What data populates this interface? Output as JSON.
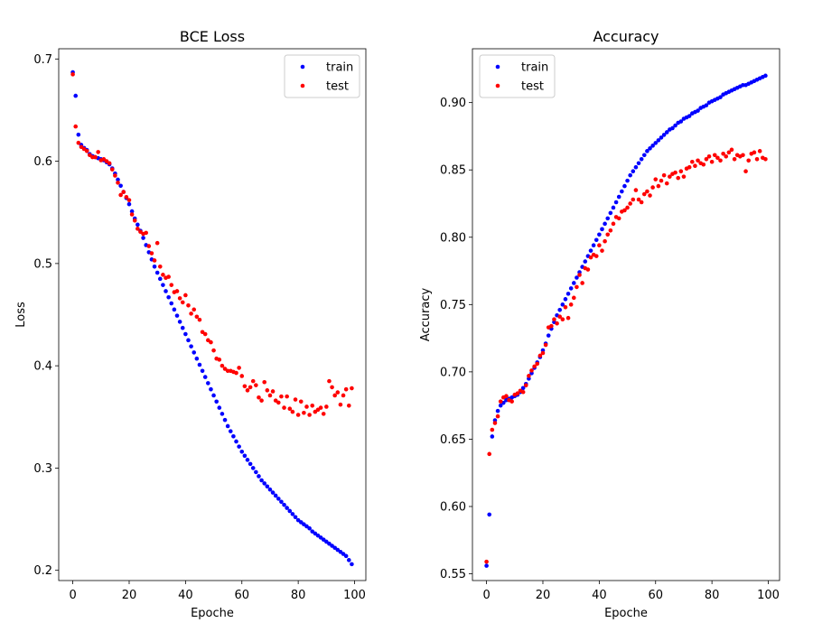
{
  "colors": {
    "train": "#0000ff",
    "test": "#ff0000"
  },
  "chart_data": [
    {
      "type": "scatter",
      "title": "BCE Loss",
      "xlabel": "Epoche",
      "ylabel": "Loss",
      "xlim": [
        -5,
        104
      ],
      "ylim": [
        0.19,
        0.71
      ],
      "xticks": [
        0,
        20,
        40,
        60,
        80,
        100
      ],
      "yticks": [
        0.2,
        0.3,
        0.4,
        0.5,
        0.6,
        0.7
      ],
      "legend_position": "top-right",
      "series": [
        {
          "name": "train",
          "values": [
            0.687,
            0.664,
            0.626,
            0.616,
            0.613,
            0.611,
            0.607,
            0.605,
            0.604,
            0.603,
            0.602,
            0.601,
            0.599,
            0.597,
            0.593,
            0.588,
            0.582,
            0.576,
            0.57,
            0.564,
            0.558,
            0.551,
            0.544,
            0.538,
            0.532,
            0.525,
            0.518,
            0.511,
            0.504,
            0.497,
            0.491,
            0.485,
            0.479,
            0.473,
            0.467,
            0.461,
            0.455,
            0.449,
            0.443,
            0.437,
            0.431,
            0.425,
            0.419,
            0.413,
            0.407,
            0.401,
            0.395,
            0.389,
            0.383,
            0.377,
            0.371,
            0.365,
            0.359,
            0.353,
            0.347,
            0.341,
            0.336,
            0.331,
            0.326,
            0.321,
            0.316,
            0.312,
            0.308,
            0.304,
            0.3,
            0.296,
            0.292,
            0.288,
            0.285,
            0.282,
            0.279,
            0.276,
            0.273,
            0.27,
            0.267,
            0.264,
            0.261,
            0.258,
            0.255,
            0.252,
            0.249,
            0.247,
            0.245,
            0.243,
            0.241,
            0.238,
            0.236,
            0.234,
            0.232,
            0.23,
            0.228,
            0.226,
            0.224,
            0.222,
            0.22,
            0.218,
            0.216,
            0.214,
            0.21,
            0.206
          ]
        },
        {
          "name": "test",
          "values": [
            0.685,
            0.634,
            0.618,
            0.614,
            0.612,
            0.61,
            0.606,
            0.604,
            0.604,
            0.609,
            0.601,
            0.602,
            0.6,
            0.598,
            0.592,
            0.586,
            0.579,
            0.567,
            0.57,
            0.565,
            0.562,
            0.548,
            0.542,
            0.534,
            0.531,
            0.529,
            0.53,
            0.517,
            0.51,
            0.503,
            0.52,
            0.497,
            0.489,
            0.486,
            0.487,
            0.479,
            0.472,
            0.473,
            0.466,
            0.462,
            0.469,
            0.459,
            0.451,
            0.455,
            0.448,
            0.445,
            0.433,
            0.431,
            0.425,
            0.423,
            0.415,
            0.407,
            0.406,
            0.4,
            0.397,
            0.395,
            0.395,
            0.394,
            0.393,
            0.398,
            0.39,
            0.38,
            0.376,
            0.379,
            0.385,
            0.381,
            0.369,
            0.366,
            0.384,
            0.376,
            0.371,
            0.375,
            0.366,
            0.364,
            0.37,
            0.359,
            0.37,
            0.358,
            0.355,
            0.367,
            0.352,
            0.365,
            0.354,
            0.36,
            0.352,
            0.361,
            0.355,
            0.357,
            0.359,
            0.353,
            0.36,
            0.385,
            0.379,
            0.371,
            0.374,
            0.362,
            0.371,
            0.377,
            0.361,
            0.378
          ]
        }
      ]
    },
    {
      "type": "scatter",
      "title": "Accuracy",
      "xlabel": "Epoche",
      "ylabel": "Accuracy",
      "xlim": [
        -5,
        104
      ],
      "ylim": [
        0.545,
        0.94
      ],
      "xticks": [
        0,
        20,
        40,
        60,
        80,
        100
      ],
      "yticks": [
        0.55,
        0.6,
        0.65,
        0.7,
        0.75,
        0.8,
        0.85,
        0.9
      ],
      "legend_position": "top-left",
      "series": [
        {
          "name": "train",
          "values": [
            0.556,
            0.594,
            0.652,
            0.664,
            0.671,
            0.675,
            0.677,
            0.679,
            0.68,
            0.681,
            0.682,
            0.683,
            0.685,
            0.688,
            0.691,
            0.695,
            0.699,
            0.703,
            0.707,
            0.711,
            0.716,
            0.721,
            0.727,
            0.732,
            0.737,
            0.742,
            0.746,
            0.75,
            0.754,
            0.758,
            0.762,
            0.766,
            0.77,
            0.774,
            0.778,
            0.782,
            0.786,
            0.79,
            0.794,
            0.798,
            0.802,
            0.806,
            0.81,
            0.814,
            0.818,
            0.822,
            0.826,
            0.83,
            0.834,
            0.838,
            0.842,
            0.846,
            0.849,
            0.852,
            0.855,
            0.858,
            0.861,
            0.864,
            0.866,
            0.868,
            0.87,
            0.872,
            0.874,
            0.876,
            0.878,
            0.88,
            0.881,
            0.883,
            0.885,
            0.886,
            0.888,
            0.889,
            0.89,
            0.892,
            0.893,
            0.894,
            0.896,
            0.897,
            0.898,
            0.9,
            0.901,
            0.902,
            0.903,
            0.904,
            0.906,
            0.907,
            0.908,
            0.909,
            0.91,
            0.911,
            0.912,
            0.913,
            0.913,
            0.914,
            0.915,
            0.916,
            0.917,
            0.918,
            0.919,
            0.92
          ]
        },
        {
          "name": "test",
          "values": [
            0.559,
            0.639,
            0.657,
            0.662,
            0.667,
            0.678,
            0.681,
            0.682,
            0.679,
            0.678,
            0.683,
            0.684,
            0.686,
            0.685,
            0.69,
            0.697,
            0.701,
            0.704,
            0.706,
            0.712,
            0.714,
            0.72,
            0.733,
            0.734,
            0.739,
            0.736,
            0.741,
            0.739,
            0.748,
            0.74,
            0.75,
            0.755,
            0.763,
            0.772,
            0.766,
            0.777,
            0.776,
            0.785,
            0.787,
            0.786,
            0.794,
            0.79,
            0.797,
            0.802,
            0.805,
            0.81,
            0.815,
            0.814,
            0.819,
            0.82,
            0.822,
            0.825,
            0.828,
            0.835,
            0.828,
            0.826,
            0.832,
            0.834,
            0.831,
            0.837,
            0.843,
            0.838,
            0.842,
            0.846,
            0.84,
            0.845,
            0.847,
            0.848,
            0.844,
            0.849,
            0.845,
            0.851,
            0.852,
            0.856,
            0.853,
            0.857,
            0.855,
            0.854,
            0.858,
            0.86,
            0.856,
            0.861,
            0.859,
            0.857,
            0.862,
            0.86,
            0.863,
            0.865,
            0.858,
            0.861,
            0.86,
            0.861,
            0.849,
            0.857,
            0.862,
            0.863,
            0.858,
            0.864,
            0.859,
            0.858
          ]
        }
      ]
    }
  ]
}
